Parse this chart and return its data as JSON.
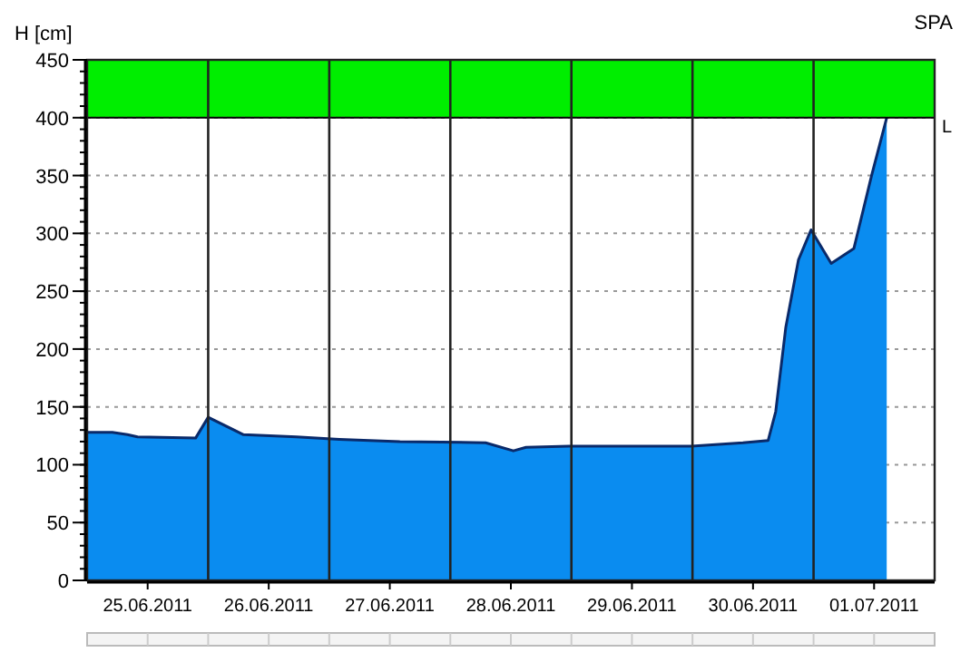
{
  "chart_data": {
    "type": "area",
    "title": "SPA",
    "ylabel": "H [cm]",
    "x": [
      "2011-06-25T00:00",
      "2011-06-25T05:00",
      "2011-06-25T08:00",
      "2011-06-25T10:00",
      "2011-06-25T21:30",
      "2011-06-26T00:00",
      "2011-06-26T07:00",
      "2011-06-26T17:30",
      "2011-06-27T02:00",
      "2011-06-27T14:00",
      "2011-06-28T07:00",
      "2011-06-28T12:30",
      "2011-06-28T15:00",
      "2011-06-28T23:30",
      "2011-06-29T23:30",
      "2011-06-30T10:00",
      "2011-06-30T15:00",
      "2011-06-30T16:30",
      "2011-06-30T18:30",
      "2011-06-30T21:00",
      "2011-06-30T23:30",
      "2011-07-01T03:30",
      "2011-07-01T08:00",
      "2011-07-01T11:30",
      "2011-07-01T14:30"
    ],
    "series": [
      {
        "color": "#0a8cf0",
        "values": [
          128,
          128,
          126,
          124,
          123,
          141,
          126,
          124,
          122,
          120,
          119,
          112,
          115,
          116,
          116,
          119,
          121,
          146,
          219,
          277,
          303,
          274,
          287,
          350,
          400
        ]
      }
    ],
    "xlim": [
      "2011-06-25",
      "2011-07-02"
    ],
    "xticks": [
      {
        "value": "2011-06-25T12:00",
        "label": "25.06.2011"
      },
      {
        "value": "2011-06-26T12:00",
        "label": "26.06.2011"
      },
      {
        "value": "2011-06-27T12:00",
        "label": "27.06.2011"
      },
      {
        "value": "2011-06-28T12:00",
        "label": "28.06.2011"
      },
      {
        "value": "2011-06-29T12:00",
        "label": "29.06.2011"
      },
      {
        "value": "2011-06-30T12:00",
        "label": "30.06.2011"
      },
      {
        "value": "2011-07-01T12:00",
        "label": "01.07.2011"
      }
    ],
    "ylim": [
      0,
      450
    ],
    "yticks": [
      0,
      50,
      100,
      150,
      200,
      250,
      300,
      350,
      400,
      450
    ],
    "grid": "y",
    "line_style": "solid",
    "bands": [
      {
        "axis": "y",
        "from": 400,
        "to": 450,
        "color": "#00ee00"
      }
    ],
    "ref_lines": [
      {
        "axis": "y",
        "value": 400,
        "label": "L",
        "color": "#000000"
      },
      {
        "axis": "x",
        "value": "2011-06-26",
        "color": "#222222"
      },
      {
        "axis": "x",
        "value": "2011-06-27",
        "color": "#222222"
      },
      {
        "axis": "x",
        "value": "2011-06-28",
        "color": "#222222"
      },
      {
        "axis": "x",
        "value": "2011-06-29",
        "color": "#222222"
      },
      {
        "axis": "x",
        "value": "2011-06-30",
        "color": "#222222"
      },
      {
        "axis": "x",
        "value": "2011-07-01",
        "color": "#222222"
      }
    ]
  }
}
